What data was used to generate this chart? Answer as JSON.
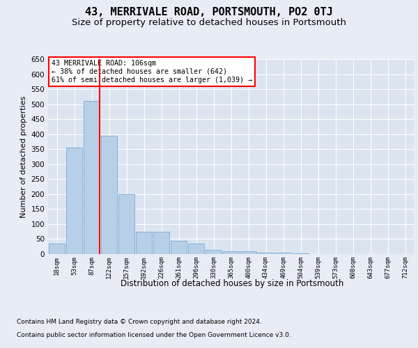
{
  "title": "43, MERRIVALE ROAD, PORTSMOUTH, PO2 0TJ",
  "subtitle": "Size of property relative to detached houses in Portsmouth",
  "xlabel": "Distribution of detached houses by size in Portsmouth",
  "ylabel": "Number of detached properties",
  "categories": [
    "18sqm",
    "53sqm",
    "87sqm",
    "122sqm",
    "157sqm",
    "192sqm",
    "226sqm",
    "261sqm",
    "296sqm",
    "330sqm",
    "365sqm",
    "400sqm",
    "434sqm",
    "469sqm",
    "504sqm",
    "539sqm",
    "573sqm",
    "608sqm",
    "643sqm",
    "677sqm",
    "712sqm"
  ],
  "values": [
    35,
    355,
    510,
    395,
    200,
    75,
    75,
    45,
    35,
    15,
    10,
    10,
    5,
    5,
    3,
    1,
    0,
    1,
    0,
    1,
    0
  ],
  "bar_color": "#b8cfe8",
  "bar_edge_color": "#7aaad0",
  "red_line_index": 2,
  "ylim": [
    0,
    650
  ],
  "yticks": [
    0,
    50,
    100,
    150,
    200,
    250,
    300,
    350,
    400,
    450,
    500,
    550,
    600,
    650
  ],
  "annotation_title": "43 MERRIVALE ROAD: 106sqm",
  "annotation_line1": "← 38% of detached houses are smaller (642)",
  "annotation_line2": "61% of semi-detached houses are larger (1,039) →",
  "footer_line1": "Contains HM Land Registry data © Crown copyright and database right 2024.",
  "footer_line2": "Contains public sector information licensed under the Open Government Licence v3.0.",
  "bg_color": "#e8ecf4",
  "plot_bg_color": "#dce4f0",
  "title_fontsize": 11,
  "subtitle_fontsize": 9.5,
  "xlabel_fontsize": 8.5,
  "ylabel_fontsize": 8
}
